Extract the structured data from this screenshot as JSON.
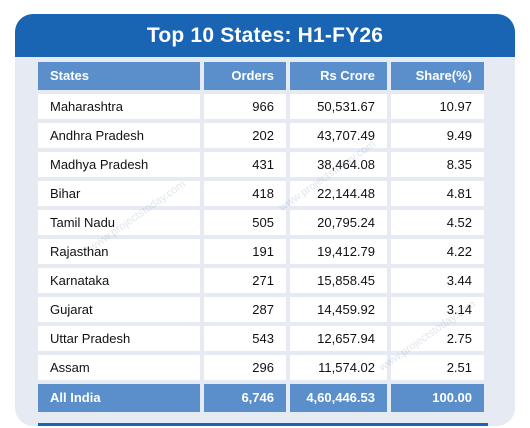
{
  "title": "Top 10 States: H1-FY26",
  "headers": {
    "state": "States",
    "orders": "Orders",
    "crore": "Rs Crore",
    "share": "Share(%)"
  },
  "rows": [
    {
      "state": "Maharashtra",
      "orders": "966",
      "crore": "50,531.67",
      "share": "10.97"
    },
    {
      "state": "Andhra Pradesh",
      "orders": "202",
      "crore": "43,707.49",
      "share": "9.49"
    },
    {
      "state": "Madhya Pradesh",
      "orders": "431",
      "crore": "38,464.08",
      "share": "8.35"
    },
    {
      "state": "Bihar",
      "orders": "418",
      "crore": "22,144.48",
      "share": "4.81"
    },
    {
      "state": "Tamil Nadu",
      "orders": "505",
      "crore": "20,795.24",
      "share": "4.52"
    },
    {
      "state": "Rajasthan",
      "orders": "191",
      "crore": "19,412.79",
      "share": "4.22"
    },
    {
      "state": "Karnataka",
      "orders": "271",
      "crore": "15,858.45",
      "share": "3.44"
    },
    {
      "state": "Gujarat",
      "orders": "287",
      "crore": "14,459.92",
      "share": "3.14"
    },
    {
      "state": "Uttar Pradesh",
      "orders": "543",
      "crore": "12,657.94",
      "share": "2.75"
    },
    {
      "state": "Assam",
      "orders": "296",
      "crore": "11,574.02",
      "share": "2.51"
    }
  ],
  "total": {
    "state": "All India",
    "orders": "6,746",
    "crore": "4,60,446.53",
    "share": "100.00"
  },
  "watermark": "www.projectstoday.com",
  "colors": {
    "title_bar": "#1a64b4",
    "header": "#5b8fcb",
    "card": "#e6eaf3"
  }
}
